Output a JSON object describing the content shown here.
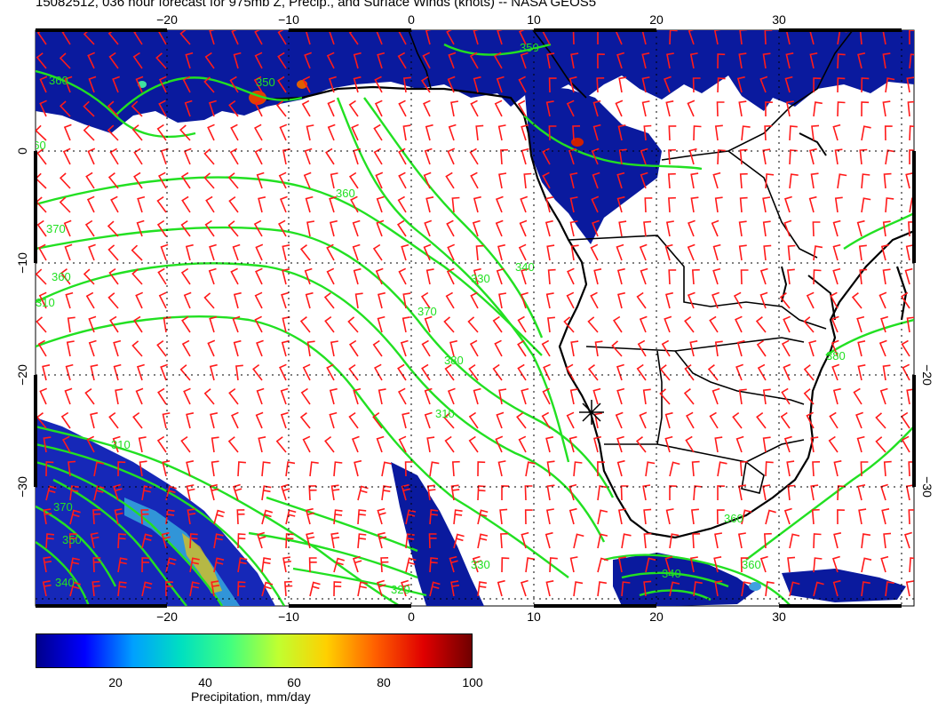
{
  "title": "15082512, 036 hour forecast for 975mb Z, Precip., and Surface Winds (knots) -- NASA GEOS5",
  "map": {
    "lon_ticks": [
      "−20",
      "−10",
      "0",
      "10",
      "20",
      "30"
    ],
    "lat_ticks": [
      "0",
      "−10",
      "−20",
      "−30"
    ],
    "contour_labels": [
      "350",
      "360",
      "370",
      "380",
      "390",
      "340",
      "330",
      "320",
      "310"
    ],
    "colors": {
      "land_outline": "#000000",
      "contour": "#22e022",
      "wind_barb": "#ff1a1a",
      "precip_low": "#000a8a",
      "precip_high": "#7a0000"
    }
  },
  "colorbar": {
    "label": "Precipitation, mm/day",
    "ticks": [
      "20",
      "40",
      "60",
      "80",
      "100"
    ],
    "min": 0,
    "max": 100,
    "gradient": [
      "#00008b",
      "#0000ff",
      "#00a0ff",
      "#00e0c0",
      "#40ff80",
      "#c0ff30",
      "#ffd000",
      "#ff6000",
      "#e00000",
      "#700000"
    ]
  }
}
